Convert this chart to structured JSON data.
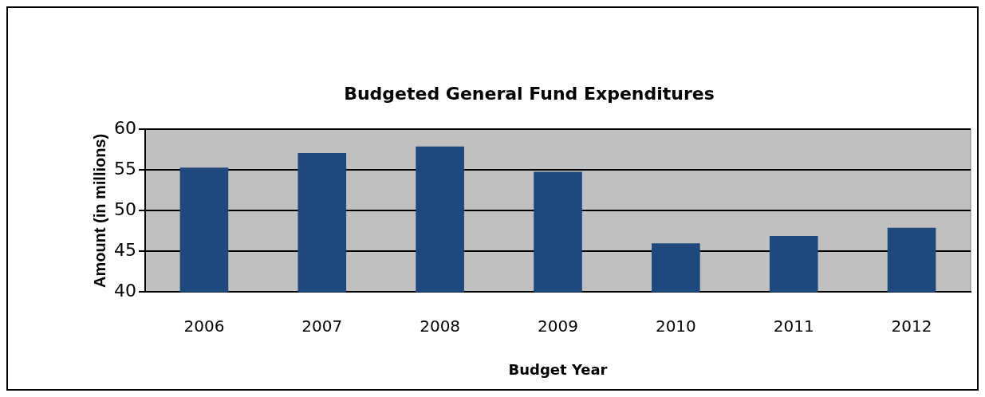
{
  "chart_data": {
    "type": "bar",
    "title": "Budgeted General Fund Expenditures",
    "xlabel": "Budget Year",
    "ylabel": "Amount (in millions)",
    "categories": [
      "2006",
      "2007",
      "2008",
      "2009",
      "2010",
      "2011",
      "2012"
    ],
    "series": [
      {
        "color": "#1f497d",
        "values": [
          55.3,
          57.1,
          57.9,
          54.8,
          46.0,
          46.9,
          47.9
        ]
      }
    ],
    "ylim": [
      40,
      60
    ],
    "yticks": [
      40,
      45,
      50,
      55,
      60
    ],
    "grid": "y",
    "legend": false
  }
}
